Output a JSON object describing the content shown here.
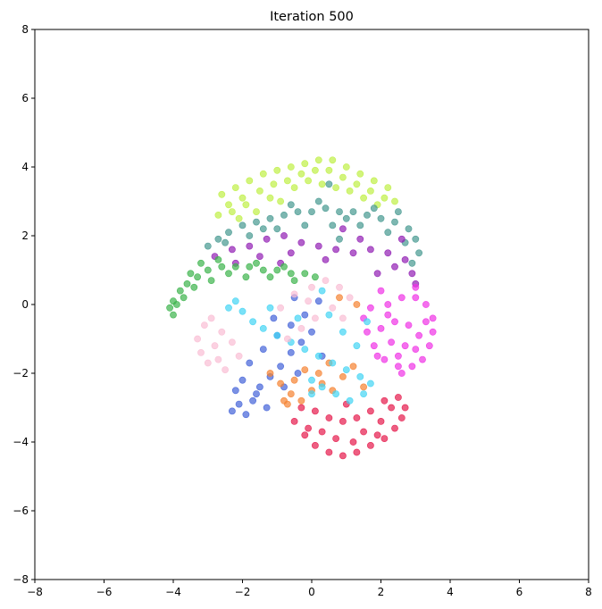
{
  "chart_data": {
    "type": "scatter",
    "title": "Iteration 500",
    "xlabel": "",
    "ylabel": "",
    "xlim": [
      -8,
      8
    ],
    "ylim": [
      -8,
      8
    ],
    "xticks": [
      -8,
      -6,
      -4,
      -2,
      0,
      2,
      4,
      6,
      8
    ],
    "yticks": [
      -8,
      -6,
      -4,
      -2,
      0,
      2,
      4,
      6,
      8
    ],
    "grid": false,
    "legend": "none",
    "marker_opacity": 0.7,
    "series": [
      {
        "color": "#bfef45",
        "points": [
          [
            -2.6,
            3.2
          ],
          [
            -2.2,
            3.4
          ],
          [
            -1.8,
            3.6
          ],
          [
            -1.4,
            3.8
          ],
          [
            -1.0,
            3.9
          ],
          [
            -0.6,
            4.0
          ],
          [
            -0.2,
            4.1
          ],
          [
            0.2,
            4.2
          ],
          [
            0.6,
            4.2
          ],
          [
            1.0,
            4.0
          ],
          [
            1.4,
            3.8
          ],
          [
            1.8,
            3.6
          ],
          [
            2.2,
            3.4
          ],
          [
            -2.4,
            2.9
          ],
          [
            -2.0,
            3.1
          ],
          [
            -1.5,
            3.3
          ],
          [
            -1.1,
            3.5
          ],
          [
            -0.7,
            3.6
          ],
          [
            -0.3,
            3.8
          ],
          [
            0.1,
            3.9
          ],
          [
            0.5,
            3.9
          ],
          [
            0.9,
            3.7
          ],
          [
            1.3,
            3.5
          ],
          [
            1.7,
            3.3
          ],
          [
            2.1,
            3.1
          ],
          [
            -2.7,
            2.6
          ],
          [
            -2.3,
            2.7
          ],
          [
            -1.9,
            2.9
          ],
          [
            -1.2,
            3.1
          ],
          [
            -0.5,
            3.4
          ],
          [
            0.3,
            3.5
          ],
          [
            1.1,
            3.3
          ],
          [
            1.9,
            2.9
          ],
          [
            2.4,
            3.0
          ],
          [
            -2.1,
            2.5
          ],
          [
            -1.6,
            2.7
          ],
          [
            -0.9,
            3.0
          ],
          [
            0.7,
            3.4
          ],
          [
            1.5,
            3.1
          ],
          [
            -0.1,
            3.6
          ]
        ]
      },
      {
        "color": "#469990",
        "points": [
          [
            -3.0,
            1.7
          ],
          [
            -2.7,
            1.9
          ],
          [
            -2.4,
            2.1
          ],
          [
            -2.0,
            2.3
          ],
          [
            -1.6,
            2.4
          ],
          [
            -1.2,
            2.5
          ],
          [
            -0.8,
            2.6
          ],
          [
            -0.4,
            2.7
          ],
          [
            0.0,
            2.7
          ],
          [
            0.4,
            2.8
          ],
          [
            0.8,
            2.7
          ],
          [
            1.2,
            2.7
          ],
          [
            1.6,
            2.6
          ],
          [
            2.0,
            2.5
          ],
          [
            2.4,
            2.4
          ],
          [
            2.8,
            2.2
          ],
          [
            3.0,
            1.9
          ],
          [
            3.1,
            1.5
          ],
          [
            -2.5,
            1.8
          ],
          [
            -1.8,
            2.0
          ],
          [
            -1.0,
            2.2
          ],
          [
            -0.2,
            2.3
          ],
          [
            0.6,
            2.3
          ],
          [
            1.4,
            2.3
          ],
          [
            2.2,
            2.1
          ],
          [
            2.7,
            1.8
          ],
          [
            -0.6,
            2.9
          ],
          [
            0.2,
            3.0
          ],
          [
            1.0,
            2.5
          ],
          [
            1.8,
            2.8
          ],
          [
            2.5,
            2.7
          ],
          [
            -1.4,
            2.2
          ],
          [
            0.8,
            1.9
          ],
          [
            2.9,
            1.2
          ],
          [
            0.5,
            3.5
          ]
        ]
      },
      {
        "color": "#911eb4",
        "points": [
          [
            -2.8,
            1.4
          ],
          [
            -2.3,
            1.6
          ],
          [
            -1.8,
            1.7
          ],
          [
            -1.3,
            1.9
          ],
          [
            -0.8,
            2.0
          ],
          [
            -0.3,
            1.8
          ],
          [
            0.2,
            1.7
          ],
          [
            0.7,
            1.6
          ],
          [
            1.2,
            1.5
          ],
          [
            1.7,
            1.6
          ],
          [
            2.2,
            1.5
          ],
          [
            2.7,
            1.3
          ],
          [
            2.9,
            0.9
          ],
          [
            -1.5,
            1.4
          ],
          [
            -0.6,
            1.5
          ],
          [
            0.4,
            1.3
          ],
          [
            1.4,
            1.9
          ],
          [
            2.4,
            1.1
          ],
          [
            3.0,
            0.6
          ],
          [
            1.9,
            0.9
          ],
          [
            -0.9,
            1.2
          ],
          [
            0.9,
            2.2
          ],
          [
            2.6,
            1.9
          ],
          [
            -2.2,
            1.2
          ]
        ]
      },
      {
        "color": "#3cb44b",
        "points": [
          [
            -4.0,
            -0.3
          ],
          [
            -4.0,
            0.1
          ],
          [
            -3.8,
            0.4
          ],
          [
            -3.6,
            0.6
          ],
          [
            -3.3,
            0.8
          ],
          [
            -3.0,
            1.0
          ],
          [
            -2.6,
            1.1
          ],
          [
            -2.2,
            1.1
          ],
          [
            -1.8,
            1.1
          ],
          [
            -1.4,
            1.0
          ],
          [
            -1.0,
            1.0
          ],
          [
            -0.6,
            0.9
          ],
          [
            -0.2,
            0.9
          ],
          [
            0.1,
            0.8
          ],
          [
            -3.9,
            0.0
          ],
          [
            -3.7,
            0.2
          ],
          [
            -3.4,
            0.5
          ],
          [
            -2.9,
            0.7
          ],
          [
            -2.4,
            0.9
          ],
          [
            -1.9,
            0.8
          ],
          [
            -1.2,
            0.8
          ],
          [
            -0.5,
            0.7
          ],
          [
            -4.1,
            -0.1
          ],
          [
            -3.5,
            0.9
          ],
          [
            -2.7,
            1.3
          ],
          [
            -1.6,
            1.2
          ],
          [
            -0.8,
            1.1
          ],
          [
            -3.2,
            1.2
          ]
        ]
      },
      {
        "color": "#f032e6",
        "points": [
          [
            2.2,
            0.0
          ],
          [
            2.6,
            0.2
          ],
          [
            3.0,
            0.2
          ],
          [
            3.3,
            0.0
          ],
          [
            3.5,
            -0.4
          ],
          [
            3.5,
            -0.8
          ],
          [
            3.4,
            -1.2
          ],
          [
            3.2,
            -1.6
          ],
          [
            2.9,
            -1.8
          ],
          [
            2.5,
            -1.8
          ],
          [
            2.1,
            -1.6
          ],
          [
            1.8,
            -1.2
          ],
          [
            1.6,
            -0.8
          ],
          [
            1.5,
            -0.4
          ],
          [
            1.7,
            -0.1
          ],
          [
            2.4,
            -0.5
          ],
          [
            2.8,
            -0.6
          ],
          [
            3.1,
            -0.9
          ],
          [
            2.7,
            -1.2
          ],
          [
            2.3,
            -1.1
          ],
          [
            2.0,
            -0.7
          ],
          [
            2.5,
            -1.5
          ],
          [
            3.0,
            -1.3
          ],
          [
            2.2,
            -0.3
          ],
          [
            3.3,
            -0.5
          ],
          [
            1.9,
            -1.5
          ],
          [
            2.6,
            -2.0
          ],
          [
            3.0,
            0.5
          ],
          [
            2.0,
            0.4
          ]
        ]
      },
      {
        "color": "#e6194b",
        "points": [
          [
            -0.5,
            -3.4
          ],
          [
            -0.2,
            -3.8
          ],
          [
            0.1,
            -4.1
          ],
          [
            0.5,
            -4.3
          ],
          [
            0.9,
            -4.4
          ],
          [
            1.3,
            -4.3
          ],
          [
            1.7,
            -4.1
          ],
          [
            2.1,
            -3.9
          ],
          [
            2.4,
            -3.6
          ],
          [
            2.6,
            -3.3
          ],
          [
            2.7,
            -3.0
          ],
          [
            2.5,
            -2.7
          ],
          [
            2.1,
            -2.8
          ],
          [
            1.7,
            -3.1
          ],
          [
            1.3,
            -3.3
          ],
          [
            0.9,
            -3.4
          ],
          [
            0.5,
            -3.3
          ],
          [
            0.1,
            -3.1
          ],
          [
            -0.3,
            -3.0
          ],
          [
            1.5,
            -3.7
          ],
          [
            0.7,
            -3.9
          ],
          [
            2.0,
            -3.4
          ],
          [
            1.0,
            -2.9
          ],
          [
            -0.1,
            -3.6
          ],
          [
            2.3,
            -3.0
          ],
          [
            1.2,
            -4.0
          ],
          [
            0.3,
            -3.7
          ],
          [
            1.9,
            -3.8
          ]
        ]
      },
      {
        "color": "#4363d8",
        "points": [
          [
            -2.2,
            -2.5
          ],
          [
            -2.1,
            -2.9
          ],
          [
            -1.9,
            -3.2
          ],
          [
            -1.7,
            -2.8
          ],
          [
            -1.5,
            -2.4
          ],
          [
            -1.2,
            -2.1
          ],
          [
            -0.9,
            -1.8
          ],
          [
            -0.6,
            -1.4
          ],
          [
            -0.3,
            -1.1
          ],
          [
            0.0,
            -0.8
          ],
          [
            -1.8,
            -1.7
          ],
          [
            -1.4,
            -1.3
          ],
          [
            -1.0,
            -0.9
          ],
          [
            -0.6,
            -0.6
          ],
          [
            -0.2,
            -0.3
          ],
          [
            0.2,
            0.1
          ],
          [
            -2.0,
            -2.2
          ],
          [
            -1.6,
            -2.6
          ],
          [
            -1.3,
            -3.0
          ],
          [
            -0.8,
            -2.4
          ],
          [
            -0.4,
            -2.0
          ],
          [
            0.3,
            -1.5
          ],
          [
            -1.1,
            -0.4
          ],
          [
            -0.5,
            0.2
          ],
          [
            -2.3,
            -3.1
          ]
        ]
      },
      {
        "color": "#f58231",
        "points": [
          [
            -1.2,
            -2.0
          ],
          [
            -0.9,
            -2.3
          ],
          [
            -0.6,
            -2.6
          ],
          [
            -0.3,
            -2.8
          ],
          [
            0.0,
            -2.5
          ],
          [
            0.3,
            -2.3
          ],
          [
            0.6,
            -2.5
          ],
          [
            0.9,
            -2.1
          ],
          [
            -0.5,
            -2.2
          ],
          [
            -0.8,
            -2.8
          ],
          [
            0.2,
            -2.0
          ],
          [
            1.2,
            -1.8
          ],
          [
            0.8,
            0.2
          ],
          [
            1.3,
            0.0
          ],
          [
            -0.2,
            -1.9
          ],
          [
            0.5,
            -1.7
          ],
          [
            -0.7,
            -2.9
          ],
          [
            1.5,
            -2.4
          ]
        ]
      },
      {
        "color": "#42d4f4",
        "points": [
          [
            -2.4,
            -0.1
          ],
          [
            -2.2,
            0.1
          ],
          [
            -2.0,
            -0.2
          ],
          [
            -1.7,
            -0.5
          ],
          [
            -1.4,
            -0.7
          ],
          [
            -1.0,
            -0.9
          ],
          [
            -0.6,
            -1.1
          ],
          [
            -0.2,
            -1.3
          ],
          [
            0.2,
            -1.5
          ],
          [
            0.6,
            -1.7
          ],
          [
            1.0,
            -1.9
          ],
          [
            1.4,
            -2.1
          ],
          [
            1.7,
            -2.3
          ],
          [
            1.5,
            -2.6
          ],
          [
            1.1,
            -2.8
          ],
          [
            0.7,
            -2.6
          ],
          [
            0.3,
            -2.4
          ],
          [
            0.0,
            -2.6
          ],
          [
            0.5,
            -0.3
          ],
          [
            0.9,
            -0.8
          ],
          [
            1.3,
            -1.2
          ],
          [
            -0.4,
            -0.4
          ],
          [
            -1.2,
            -0.1
          ],
          [
            0.3,
            0.4
          ],
          [
            1.6,
            -0.5
          ],
          [
            0.0,
            -2.2
          ]
        ]
      },
      {
        "color": "#fabed4",
        "points": [
          [
            -3.3,
            -1.0
          ],
          [
            -3.2,
            -1.4
          ],
          [
            -3.0,
            -1.7
          ],
          [
            -2.8,
            -1.2
          ],
          [
            -2.6,
            -0.8
          ],
          [
            -2.3,
            -1.1
          ],
          [
            -2.1,
            -1.5
          ],
          [
            -2.7,
            -1.6
          ],
          [
            -3.1,
            -0.6
          ],
          [
            -0.9,
            -0.1
          ],
          [
            -0.5,
            0.3
          ],
          [
            0.0,
            0.5
          ],
          [
            0.4,
            0.7
          ],
          [
            0.8,
            0.5
          ],
          [
            1.1,
            0.2
          ],
          [
            0.6,
            -0.1
          ],
          [
            0.1,
            -0.4
          ],
          [
            -0.3,
            -0.7
          ],
          [
            -0.7,
            -1.0
          ],
          [
            -2.5,
            -1.9
          ],
          [
            -2.9,
            -0.4
          ],
          [
            0.9,
            -0.4
          ],
          [
            -0.1,
            0.1
          ]
        ]
      }
    ]
  }
}
